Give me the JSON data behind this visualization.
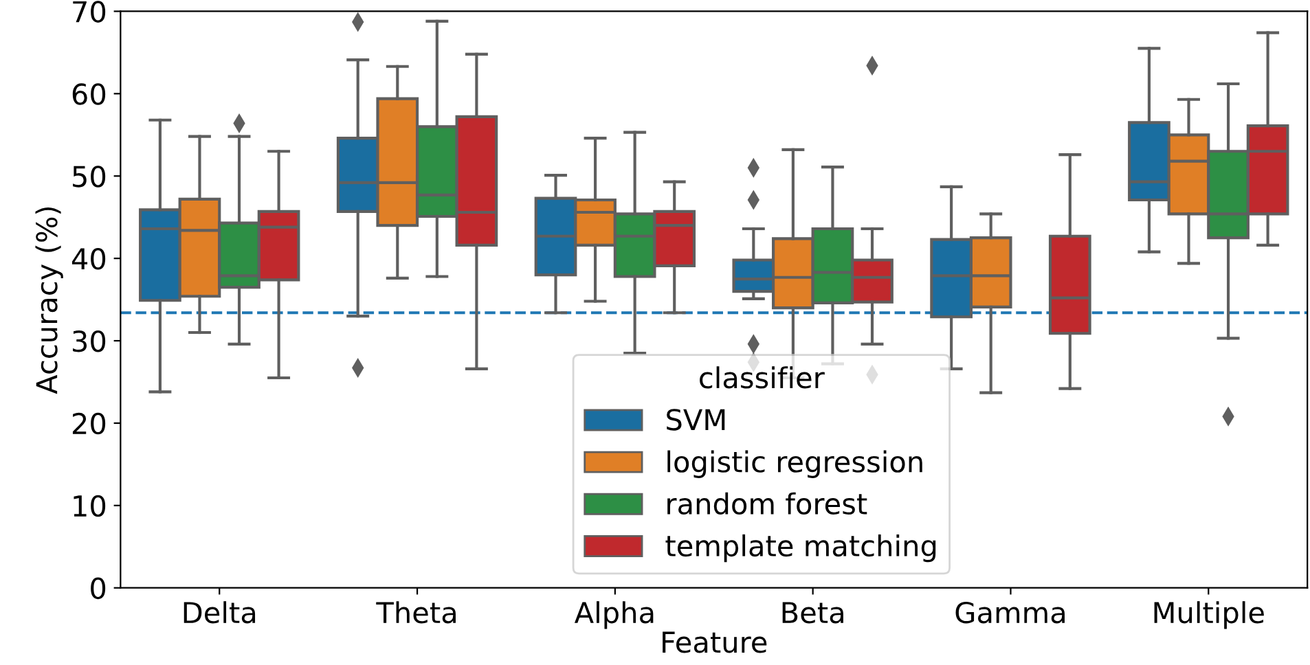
{
  "chart_data": {
    "type": "box",
    "xlabel": "Feature",
    "ylabel": "Accuracy (%)",
    "legend_title": "classifier",
    "legend": "bottom",
    "grid": false,
    "categories": [
      "Delta",
      "Theta",
      "Alpha",
      "Beta",
      "Gamma",
      "Multiple"
    ],
    "ylim": [
      0,
      70
    ],
    "yticks": [
      0,
      10,
      20,
      30,
      40,
      50,
      60,
      70
    ],
    "ref_lines": [
      {
        "axis": "y",
        "value": 33.4,
        "color": "#1f77b4",
        "line_style": "dashed"
      }
    ],
    "series": [
      {
        "name": "SVM",
        "color": "#1a6ea0",
        "boxes": [
          {
            "low": 23.8,
            "q1": 34.9,
            "median": 43.6,
            "q3": 45.9,
            "high": 56.8
          },
          {
            "low": 33.0,
            "q1": 45.7,
            "median": 49.2,
            "q3": 54.6,
            "high": 64.1,
            "outliers": [
              68.7,
              26.7
            ]
          },
          {
            "low": 33.4,
            "q1": 38.0,
            "median": 42.7,
            "q3": 47.3,
            "high": 50.1
          },
          {
            "low": 35.1,
            "q1": 36.0,
            "median": 37.5,
            "q3": 39.8,
            "high": 43.6,
            "outliers": [
              51.0,
              47.1,
              29.6,
              27.4
            ]
          },
          {
            "low": 26.6,
            "q1": 32.9,
            "median": 37.9,
            "q3": 42.3,
            "high": 48.7
          },
          {
            "low": 40.8,
            "q1": 47.1,
            "median": 49.3,
            "q3": 56.5,
            "high": 65.5
          }
        ]
      },
      {
        "name": "logistic regression",
        "color": "#e07f26",
        "boxes": [
          {
            "low": 31.0,
            "q1": 35.4,
            "median": 43.4,
            "q3": 47.2,
            "high": 54.8
          },
          {
            "low": 37.6,
            "q1": 44.0,
            "median": 49.2,
            "q3": 59.4,
            "high": 63.3
          },
          {
            "low": 34.8,
            "q1": 41.6,
            "median": 45.6,
            "q3": 47.1,
            "high": 54.6
          },
          {
            "low": 25.5,
            "q1": 34.0,
            "median": 37.7,
            "q3": 42.4,
            "high": 53.2
          },
          {
            "low": 23.7,
            "q1": 34.1,
            "median": 37.9,
            "q3": 42.5,
            "high": 45.4
          },
          {
            "low": 39.4,
            "q1": 45.4,
            "median": 51.8,
            "q3": 55.0,
            "high": 59.3
          }
        ]
      },
      {
        "name": "random forest",
        "color": "#2d8f45",
        "boxes": [
          {
            "low": 29.6,
            "q1": 36.5,
            "median": 37.9,
            "q3": 44.3,
            "high": 54.8,
            "outliers": [
              56.4
            ]
          },
          {
            "low": 37.8,
            "q1": 45.1,
            "median": 47.7,
            "q3": 56.0,
            "high": 68.8
          },
          {
            "low": 28.5,
            "q1": 37.8,
            "median": 42.7,
            "q3": 45.4,
            "high": 55.3
          },
          {
            "low": 27.2,
            "q1": 34.6,
            "median": 38.3,
            "q3": 43.6,
            "high": 51.1
          },
          null,
          {
            "low": 30.3,
            "q1": 42.5,
            "median": 45.4,
            "q3": 53.0,
            "high": 61.2,
            "outliers": [
              20.8
            ]
          }
        ]
      },
      {
        "name": "template matching",
        "color": "#c0292d",
        "boxes": [
          {
            "low": 25.5,
            "q1": 37.4,
            "median": 43.8,
            "q3": 45.7,
            "high": 53.0
          },
          {
            "low": 26.6,
            "q1": 41.6,
            "median": 45.6,
            "q3": 57.2,
            "high": 64.8
          },
          {
            "low": 33.4,
            "q1": 39.1,
            "median": 44.0,
            "q3": 45.7,
            "high": 49.3
          },
          {
            "low": 29.6,
            "q1": 34.7,
            "median": 37.7,
            "q3": 39.8,
            "high": 43.6,
            "outliers": [
              63.4,
              25.9
            ]
          },
          {
            "low": 24.2,
            "q1": 30.9,
            "median": 35.2,
            "q3": 42.7,
            "high": 52.6
          },
          {
            "low": 41.6,
            "q1": 45.4,
            "median": 53.0,
            "q3": 56.1,
            "high": 67.4
          }
        ]
      }
    ]
  }
}
